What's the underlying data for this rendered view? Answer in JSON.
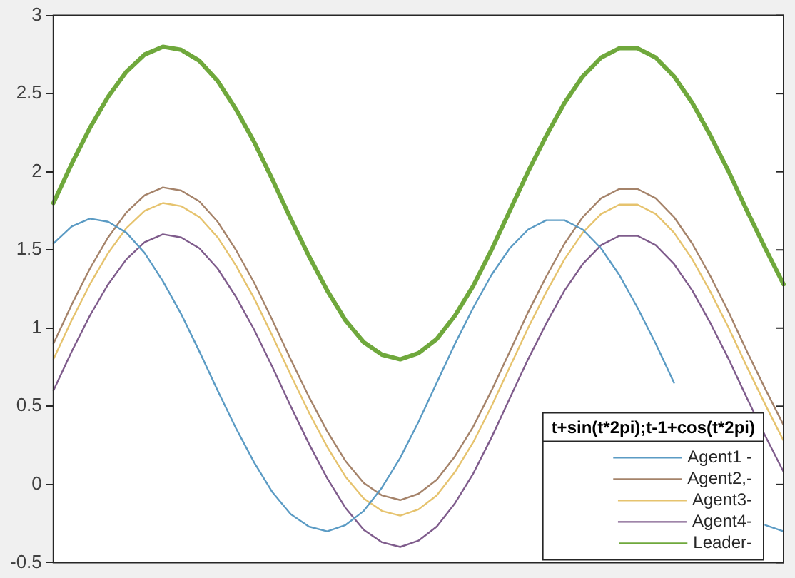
{
  "chart_data": {
    "type": "line",
    "categories": [
      null,
      null,
      null,
      null,
      null,
      null,
      null,
      null,
      null,
      null,
      null,
      null,
      null,
      null,
      null,
      null,
      null,
      null,
      null,
      null,
      null,
      null,
      null,
      null,
      null,
      null,
      null,
      null,
      null,
      null,
      null,
      null,
      null,
      null,
      null,
      null,
      null,
      null,
      null,
      null,
      null
    ],
    "series": [
      {
        "name": "Agent1 -",
        "color": "#5b9bc4",
        "values": [
          1.54,
          1.65,
          1.7,
          1.68,
          1.61,
          1.48,
          1.3,
          1.09,
          0.85,
          0.6,
          0.36,
          0.14,
          -0.05,
          -0.19,
          -0.27,
          -0.3,
          -0.26,
          -0.17,
          -0.02,
          0.17,
          0.4,
          0.65,
          0.9,
          1.13,
          1.34,
          1.51,
          1.63,
          1.69,
          1.69,
          1.63,
          1.51,
          1.34,
          1.13,
          0.9,
          0.65,
          null,
          null,
          null,
          null,
          -0.26,
          -0.3
        ]
      },
      {
        "name": "Agent2,-",
        "color": "#a5836a",
        "values": [
          0.9,
          1.15,
          1.38,
          1.58,
          1.74,
          1.85,
          1.9,
          1.88,
          1.81,
          1.68,
          1.5,
          1.29,
          1.05,
          0.8,
          0.56,
          0.34,
          0.15,
          0.01,
          -0.07,
          -0.1,
          -0.06,
          0.03,
          0.18,
          0.37,
          0.6,
          0.85,
          1.1,
          1.33,
          1.54,
          1.71,
          1.83,
          1.89,
          1.89,
          1.83,
          1.71,
          1.54,
          1.33,
          1.1,
          0.85,
          0.61,
          0.38
        ]
      },
      {
        "name": "Agent3-",
        "color": "#e6c36e",
        "values": [
          0.8,
          1.05,
          1.28,
          1.48,
          1.64,
          1.75,
          1.8,
          1.78,
          1.71,
          1.58,
          1.4,
          1.19,
          0.95,
          0.7,
          0.46,
          0.24,
          0.05,
          -0.09,
          -0.17,
          -0.2,
          -0.16,
          -0.07,
          0.08,
          0.27,
          0.5,
          0.75,
          1.0,
          1.23,
          1.44,
          1.61,
          1.73,
          1.79,
          1.79,
          1.73,
          1.61,
          1.44,
          1.23,
          1.0,
          0.75,
          0.51,
          0.28
        ]
      },
      {
        "name": "Agent4-",
        "color": "#7f5c8c",
        "values": [
          0.6,
          0.85,
          1.08,
          1.28,
          1.44,
          1.55,
          1.6,
          1.58,
          1.51,
          1.38,
          1.2,
          0.99,
          0.75,
          0.5,
          0.26,
          0.04,
          -0.15,
          -0.29,
          -0.37,
          -0.4,
          -0.36,
          -0.27,
          -0.12,
          0.07,
          0.3,
          0.55,
          0.8,
          1.03,
          1.24,
          1.41,
          1.53,
          1.59,
          1.59,
          1.53,
          1.41,
          1.24,
          1.03,
          0.8,
          0.55,
          0.31,
          0.08
        ]
      },
      {
        "name": "Leader-",
        "color": "#6fa83c",
        "values": [
          1.8,
          2.05,
          2.28,
          2.48,
          2.64,
          2.75,
          2.8,
          2.78,
          2.71,
          2.58,
          2.4,
          2.19,
          1.95,
          1.7,
          1.46,
          1.24,
          1.05,
          0.91,
          0.83,
          0.8,
          0.84,
          0.93,
          1.08,
          1.27,
          1.5,
          1.75,
          2.0,
          2.23,
          2.44,
          2.61,
          2.73,
          2.79,
          2.79,
          2.73,
          2.61,
          2.44,
          2.23,
          2.0,
          1.75,
          1.51,
          1.28
        ]
      }
    ],
    "legend_title": "t+sin(t*2pi);t-1+cos(t*2pi)",
    "legend": "bottom right",
    "ylim": [
      -0.5,
      3
    ],
    "yticks": [
      -0.5,
      0,
      0.5,
      1,
      1.5,
      2,
      2.5,
      3
    ],
    "tick_labels": "y",
    "grid": false,
    "line_style": "solid",
    "marker": "none"
  }
}
